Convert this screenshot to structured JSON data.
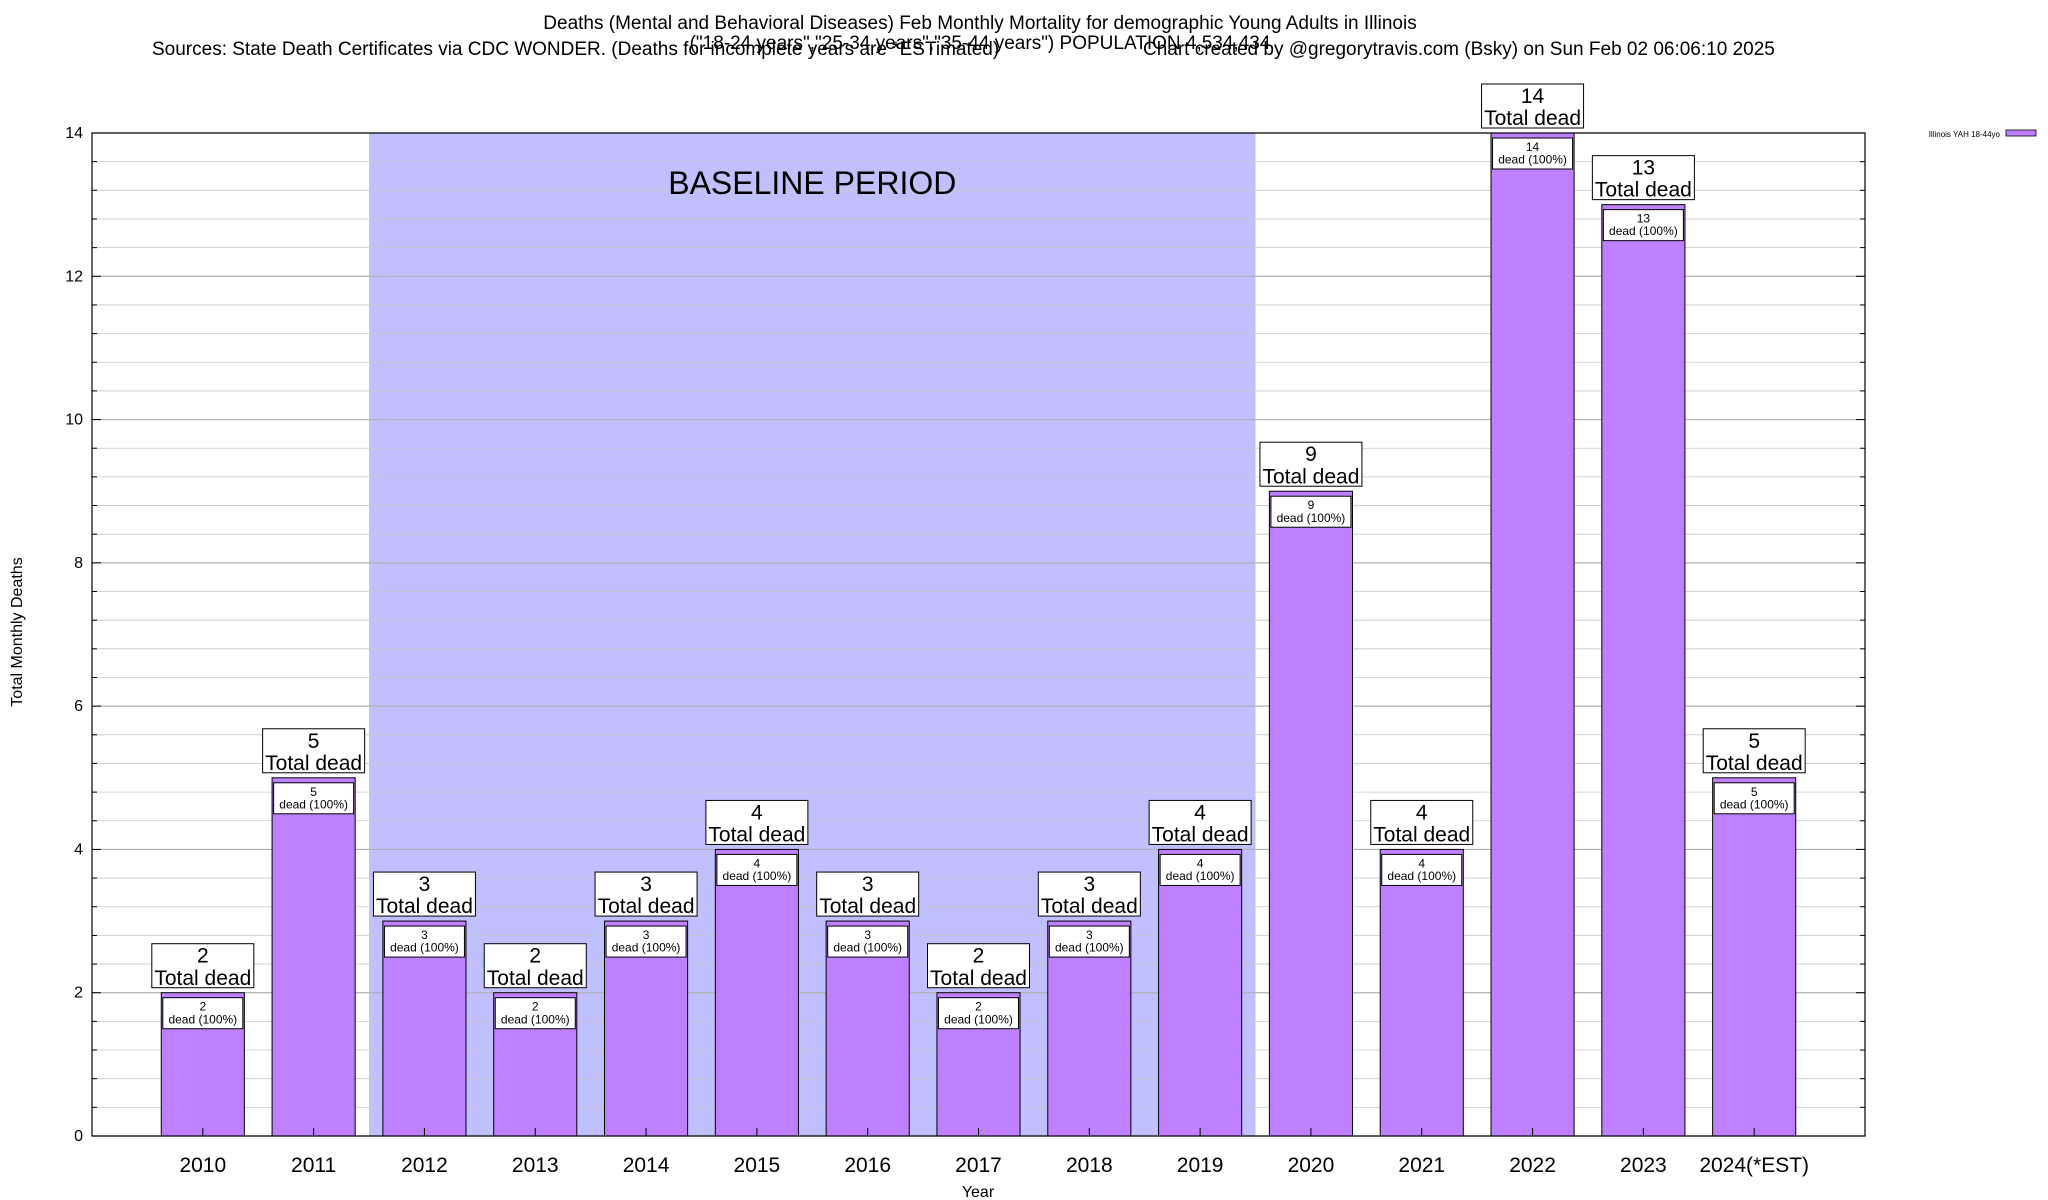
{
  "chart_data": {
    "type": "bar",
    "title": "Deaths (Mental and Behavioral Diseases) Feb Monthly Mortality for demographic Young Adults in Illinois",
    "subtitle": "(\"18-24 years\",\"25-34 years\",\"35-44 years\") POPULATION 4,534,434",
    "sources": "Sources: State Death Certificates via CDC WONDER. (Deaths for incomplete years are *ESTimated)",
    "credit": "Chart created by @gregorytravis.com (Bsky) on Sun Feb 02 06:06:10 2025",
    "xlabel": "Year",
    "ylabel": "Total Monthly Deaths",
    "ylim": [
      0,
      14
    ],
    "yticks": [
      0,
      2,
      4,
      6,
      8,
      10,
      12,
      14
    ],
    "grid": true,
    "legend": {
      "position": "top-right",
      "label": "Illinois YAH 18-44yo"
    },
    "categories": [
      "2010",
      "2011",
      "2012",
      "2013",
      "2014",
      "2015",
      "2016",
      "2017",
      "2018",
      "2019",
      "2020",
      "2021",
      "2022",
      "2023",
      "2024(*EST)"
    ],
    "series": [
      {
        "name": "Illinois YAH 18-44yo",
        "values": [
          2,
          5,
          3,
          2,
          3,
          4,
          3,
          2,
          3,
          4,
          9,
          4,
          14,
          13,
          5
        ],
        "inner_labels": [
          "2\ndead (100%)",
          "5\ndead (100%)",
          "3\ndead (100%)",
          "2\ndead (100%)",
          "3\ndead (100%)",
          "4\ndead (100%)",
          "3\ndead (100%)",
          "2\ndead (100%)",
          "3\ndead (100%)",
          "4\ndead (100%)",
          "9\ndead (100%)",
          "4\ndead (100%)",
          "14\ndead (100%)",
          "13\ndead (100%)",
          "5\ndead (100%)"
        ]
      }
    ],
    "total_labels": [
      "2\nTotal dead",
      "5\nTotal dead",
      "3\nTotal dead",
      "2\nTotal dead",
      "3\nTotal dead",
      "4\nTotal dead",
      "3\nTotal dead",
      "2\nTotal dead",
      "3\nTotal dead",
      "4\nTotal dead",
      "9\nTotal dead",
      "4\nTotal dead",
      "14\nTotal dead",
      "13\nTotal dead",
      "5\nTotal dead"
    ],
    "baseline_period": {
      "label": "BASELINE PERIOD",
      "from": "2012",
      "to": "2019"
    },
    "colors": {
      "bar": "#bf80ff",
      "baseline": "#c0c0ff",
      "grid": "#c8c8c8"
    }
  }
}
